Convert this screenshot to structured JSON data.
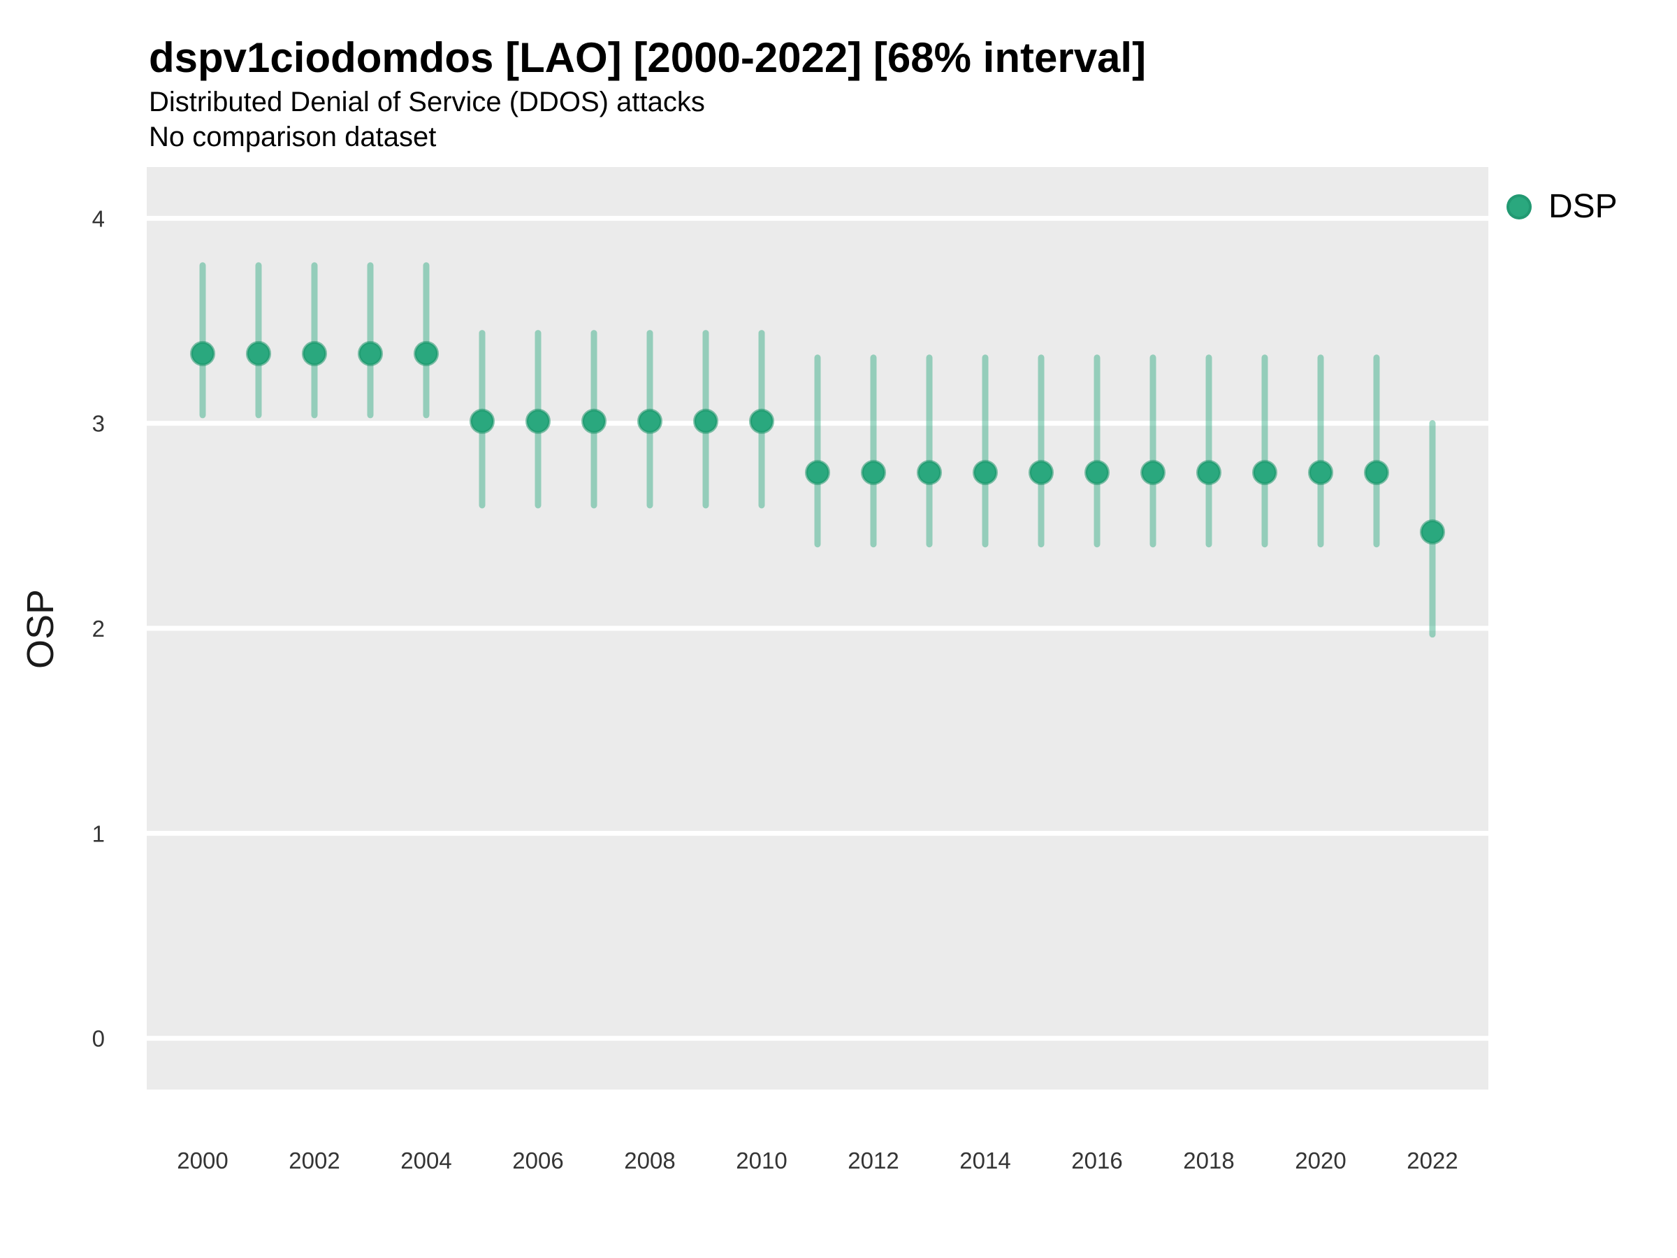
{
  "chart_data": {
    "type": "scatter",
    "title": "dspv1ciodomdos [LAO] [2000-2022] [68% interval]",
    "subtitle": "Distributed Denial of Service (DDOS) attacks",
    "note": "No comparison dataset",
    "xlabel": "",
    "ylabel": "OSP",
    "x": [
      2000,
      2001,
      2002,
      2003,
      2004,
      2005,
      2006,
      2007,
      2008,
      2009,
      2010,
      2011,
      2012,
      2013,
      2014,
      2015,
      2016,
      2017,
      2018,
      2019,
      2020,
      2021,
      2022
    ],
    "series": [
      {
        "name": "DSP",
        "values": [
          3.34,
          3.34,
          3.34,
          3.34,
          3.34,
          3.01,
          3.01,
          3.01,
          3.01,
          3.01,
          3.01,
          2.76,
          2.76,
          2.76,
          2.76,
          2.76,
          2.76,
          2.76,
          2.76,
          2.76,
          2.76,
          2.76,
          2.47
        ],
        "lower_68": [
          3.04,
          3.04,
          3.04,
          3.04,
          3.04,
          2.6,
          2.6,
          2.6,
          2.6,
          2.6,
          2.6,
          2.41,
          2.41,
          2.41,
          2.41,
          2.41,
          2.41,
          2.41,
          2.41,
          2.41,
          2.41,
          2.41,
          1.97
        ],
        "upper_68": [
          3.77,
          3.77,
          3.77,
          3.77,
          3.77,
          3.44,
          3.44,
          3.44,
          3.44,
          3.44,
          3.44,
          3.32,
          3.32,
          3.32,
          3.32,
          3.32,
          3.32,
          3.32,
          3.32,
          3.32,
          3.32,
          3.32,
          3.0
        ]
      }
    ],
    "interval_label": "68% interval",
    "xlim": [
      1999,
      2023
    ],
    "ylim": [
      -0.25,
      4.25
    ],
    "x_ticks": [
      2000,
      2002,
      2004,
      2006,
      2008,
      2010,
      2012,
      2014,
      2016,
      2018,
      2020,
      2022
    ],
    "y_ticks": [
      0,
      1,
      2,
      3,
      4
    ],
    "grid": "white horizontal gridlines on gray panel",
    "legend_position": "right-top",
    "colors": {
      "point": "#2aa87e",
      "point_stroke": "#1a9468",
      "interval": "#2aa87e",
      "interval_opacity": 0.45,
      "panel_bg": "#EBEBEB",
      "grid": "#FFFFFF",
      "tick_text": "#343434",
      "text": "#000000"
    }
  }
}
